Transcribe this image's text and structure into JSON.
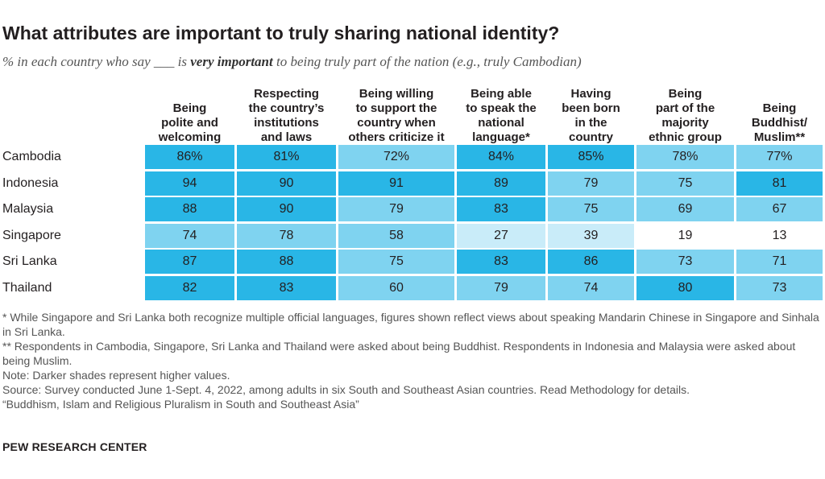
{
  "title": "What attributes are important to truly sharing national identity?",
  "subtitle": {
    "before": "% in each country who say ___ is ",
    "emphasis": "very important",
    "after": " to being truly part of the nation (e.g., truly Cambodian)"
  },
  "chart_data": {
    "type": "table",
    "columns": [
      [
        "Being",
        "polite and",
        "welcoming"
      ],
      [
        "Respecting",
        "the country’s",
        "institutions",
        "and laws"
      ],
      [
        "Being willing",
        "to support the",
        "country when",
        "others criticize it"
      ],
      [
        "Being able",
        "to speak the",
        "national",
        "language*"
      ],
      [
        "Having",
        "been born",
        "in the",
        "country"
      ],
      [
        "Being",
        "part of the",
        "majority",
        "ethnic group"
      ],
      [
        "Being",
        "Buddhist/",
        "Muslim**"
      ]
    ],
    "rows": [
      {
        "country": "Cambodia",
        "values": [
          86,
          81,
          72,
          84,
          85,
          78,
          77
        ],
        "labels": [
          "86%",
          "81%",
          "72%",
          "84%",
          "85%",
          "78%",
          "77%"
        ]
      },
      {
        "country": "Indonesia",
        "values": [
          94,
          90,
          91,
          89,
          79,
          75,
          81
        ],
        "labels": [
          "94",
          "90",
          "91",
          "89",
          "79",
          "75",
          "81"
        ]
      },
      {
        "country": "Malaysia",
        "values": [
          88,
          90,
          79,
          83,
          75,
          69,
          67
        ],
        "labels": [
          "88",
          "90",
          "79",
          "83",
          "75",
          "69",
          "67"
        ]
      },
      {
        "country": "Singapore",
        "values": [
          74,
          78,
          58,
          27,
          39,
          19,
          13
        ],
        "labels": [
          "74",
          "78",
          "58",
          "27",
          "39",
          "19",
          "13"
        ]
      },
      {
        "country": "Sri Lanka",
        "values": [
          87,
          88,
          75,
          83,
          86,
          73,
          71
        ],
        "labels": [
          "87",
          "88",
          "75",
          "83",
          "86",
          "73",
          "71"
        ]
      },
      {
        "country": "Thailand",
        "values": [
          82,
          83,
          60,
          79,
          74,
          80,
          73
        ],
        "labels": [
          "82",
          "83",
          "60",
          "79",
          "74",
          "80",
          "73"
        ]
      }
    ],
    "shading": {
      "darker_means": "higher values",
      "colors": {
        "high": "#29b6e6",
        "mid": "#7fd3f0",
        "low": "#c9ecf9",
        "none": "#ffffff"
      }
    }
  },
  "notes": [
    "* While Singapore and Sri Lanka both recognize multiple official languages, figures shown reflect views about speaking Mandarin Chinese in Singapore and Sinhala in Sri Lanka.",
    "** Respondents in Cambodia, Singapore, Sri Lanka and Thailand were asked about being Buddhist. Respondents in Indonesia and Malaysia were asked about being Muslim.",
    "Note: Darker shades represent higher values.",
    "Source: Survey conducted June 1-Sept. 4, 2022, among adults in six South and Southeast Asian countries. Read Methodology for details.",
    "“Buddhism, Islam and Religious Pluralism in South and Southeast Asia”"
  ],
  "brand": "PEW RESEARCH CENTER"
}
